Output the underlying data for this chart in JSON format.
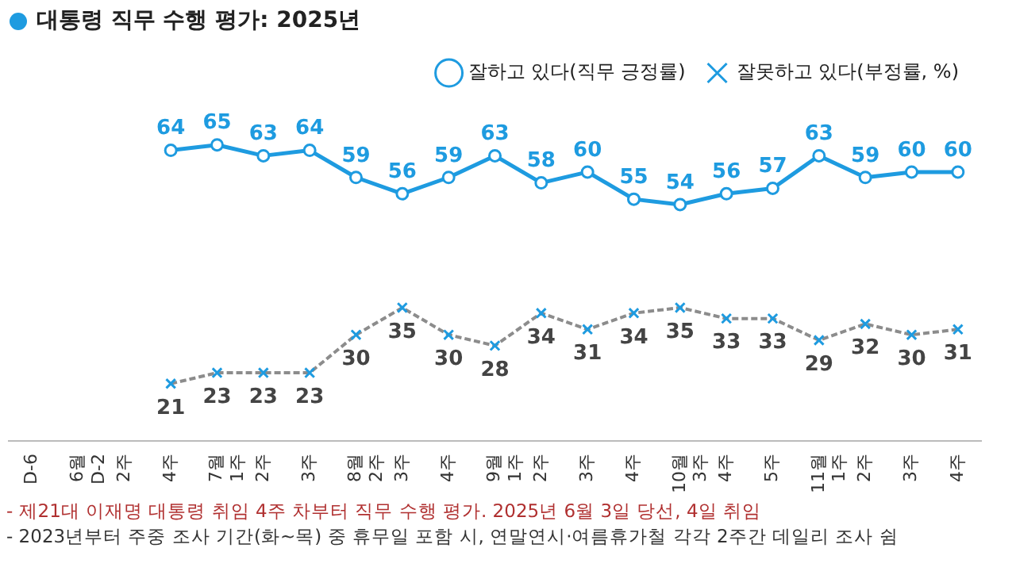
{
  "chart_data": {
    "type": "line",
    "title": "대통령 직무 수행 평가: 2025년",
    "categories": [
      "D-6",
      "6월 D-2",
      "2주",
      "4주",
      "7월 1주",
      "2주",
      "3주",
      "8월 2주",
      "3주",
      "4주",
      "9월 1주",
      "2주",
      "3주",
      "4주",
      "10월 3주",
      "4주",
      "5주",
      "11월 1주",
      "2주",
      "3주",
      "4주"
    ],
    "series": [
      {
        "name": "잘하고 있다(직무 긍정률)",
        "color": "#1e9be0",
        "marker": "circle",
        "line_style": "solid",
        "values": [
          null,
          null,
          null,
          64,
          65,
          63,
          64,
          59,
          56,
          59,
          63,
          58,
          60,
          55,
          54,
          56,
          57,
          63,
          59,
          60,
          60
        ]
      },
      {
        "name": "잘못하고 있다(부정률, %)",
        "color": "#8c8c8c",
        "marker": "cross",
        "line_style": "dashed",
        "values": [
          null,
          null,
          null,
          21,
          23,
          23,
          23,
          30,
          35,
          30,
          28,
          34,
          31,
          34,
          35,
          33,
          33,
          29,
          32,
          30,
          31
        ]
      }
    ],
    "data_labels": true,
    "legend": "top right",
    "grid": false,
    "tick_labels": "x",
    "annotations": [
      "- 제21대 이재명 대통령 취임 4주 차부터 직무 수행 평가. 2025년 6월 3일 당선, 4일 취임",
      "- 2023년부터 주중 조사 기간(화~목) 중 휴무일 포함 시, 연말연시·여름휴가철 각각 2주간 데일리 조사 쉼"
    ]
  }
}
